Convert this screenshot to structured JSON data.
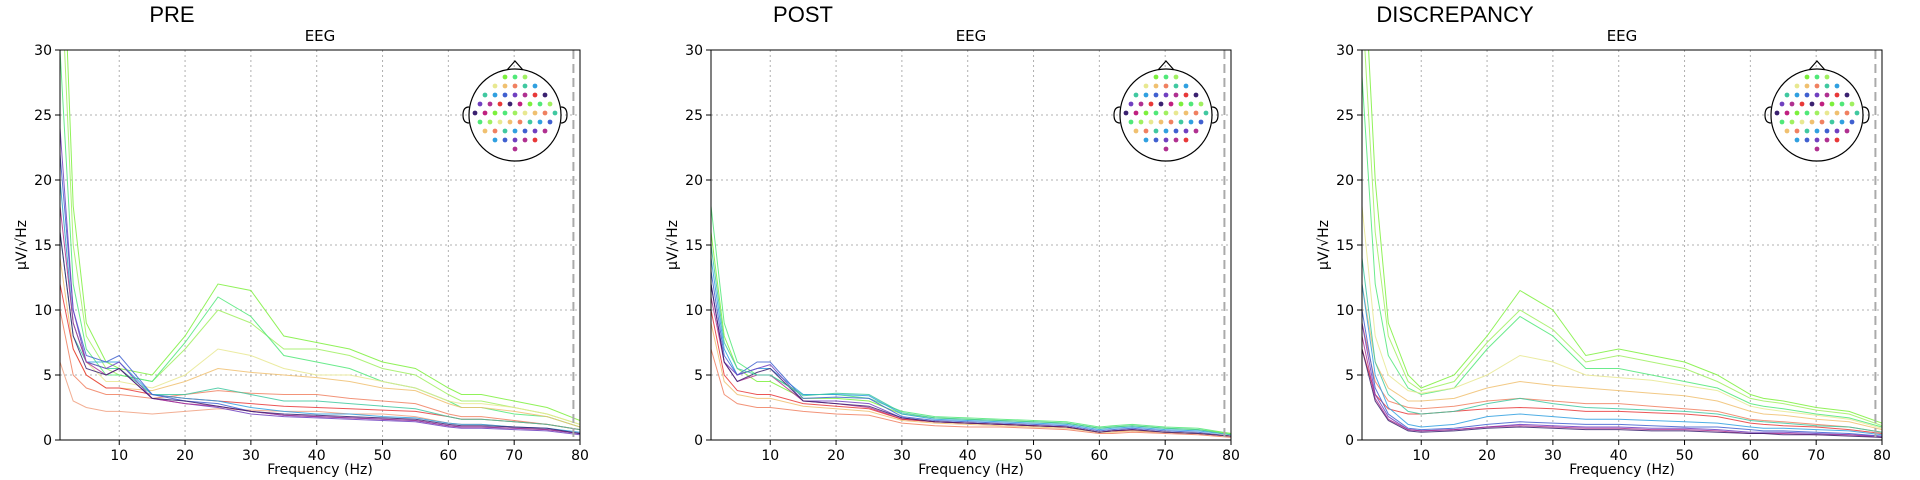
{
  "chart_data": [
    {
      "type": "line",
      "title": "PRE",
      "subtitle": "EEG",
      "xlabel": "Frequency (Hz)",
      "ylabel": "µV/√Hz",
      "xlim": [
        1,
        80
      ],
      "ylim": [
        0,
        30
      ],
      "xticks": [
        10,
        20,
        30,
        40,
        50,
        60,
        70,
        80
      ],
      "yticks": [
        0,
        5,
        10,
        15,
        20,
        25,
        30
      ],
      "grid": true,
      "vline_x": 79,
      "legend": "sensor-layout-inset-top-right",
      "x": [
        1,
        3,
        5,
        8,
        10,
        15,
        20,
        25,
        30,
        35,
        40,
        45,
        50,
        55,
        60,
        62,
        65,
        70,
        75,
        80
      ],
      "series": [
        {
          "color": "#7cf03c",
          "values": [
            45,
            18,
            9,
            6,
            5.5,
            5,
            8,
            12,
            11.5,
            8,
            7.5,
            7,
            6,
            5.5,
            4,
            3.5,
            3.5,
            3,
            2.5,
            1.5
          ]
        },
        {
          "color": "#a0f060",
          "values": [
            38,
            15,
            8,
            5.5,
            5,
            4.5,
            7,
            10,
            9,
            7,
            7,
            6.5,
            5.5,
            5,
            3.5,
            3,
            3,
            2.5,
            2,
            1.2
          ]
        },
        {
          "color": "#50e878",
          "values": [
            30,
            12,
            7,
            5,
            5,
            4.5,
            7.5,
            11,
            9.5,
            6.5,
            6,
            5.5,
            4.5,
            4,
            3,
            2.5,
            2.5,
            2,
            1.8,
            1
          ]
        },
        {
          "color": "#e8e890",
          "values": [
            20,
            9,
            6,
            4.5,
            4.5,
            4,
            5,
            7,
            6.5,
            5.5,
            5,
            5,
            4.5,
            4,
            3,
            2.8,
            2.8,
            2.5,
            2,
            1.2
          ]
        },
        {
          "color": "#f0c070",
          "values": [
            14,
            7,
            5,
            4,
            4,
            3.8,
            4.5,
            5.5,
            5.2,
            5,
            4.8,
            4.5,
            4,
            3.8,
            2.8,
            2.5,
            2.5,
            2.2,
            1.8,
            1
          ]
        },
        {
          "color": "#f08060",
          "values": [
            10,
            5,
            4,
            3.5,
            3.5,
            3.2,
            3.5,
            3.8,
            3.6,
            3.5,
            3.5,
            3.2,
            3,
            2.8,
            2,
            1.8,
            1.8,
            1.5,
            1.2,
            0.8
          ]
        },
        {
          "color": "#f0a080",
          "values": [
            6,
            3,
            2.5,
            2.2,
            2.2,
            2,
            2.2,
            2.4,
            2.3,
            2.2,
            2.2,
            2,
            2,
            1.8,
            1.3,
            1.2,
            1.2,
            1,
            0.8,
            0.5
          ]
        },
        {
          "color": "#e83838",
          "values": [
            12,
            7,
            5,
            4,
            4,
            3.5,
            3.2,
            3,
            2.8,
            2.6,
            2.5,
            2.4,
            2.3,
            2.2,
            1.8,
            1.6,
            1.6,
            1.4,
            1.2,
            0.8
          ]
        },
        {
          "color": "#40c8a0",
          "values": [
            16,
            8,
            6,
            5.5,
            5.5,
            3.5,
            3.5,
            4,
            3.5,
            3,
            3,
            2.8,
            2.6,
            2.4,
            1.8,
            1.6,
            1.6,
            1.4,
            1.2,
            0.8
          ]
        },
        {
          "color": "#30a0e0",
          "values": [
            20,
            9,
            6,
            6,
            6,
            3.5,
            3.2,
            3,
            2.5,
            2.2,
            2,
            2,
            1.8,
            1.7,
            1.3,
            1.2,
            1.2,
            1,
            0.9,
            0.6
          ]
        },
        {
          "color": "#4060d0",
          "values": [
            22,
            10,
            6.5,
            6,
            6.5,
            3.5,
            3,
            2.8,
            2.2,
            1.9,
            1.8,
            1.7,
            1.6,
            1.5,
            1.1,
            1,
            1,
            0.9,
            0.8,
            0.5
          ]
        },
        {
          "color": "#7040c0",
          "values": [
            24,
            10,
            6,
            5.5,
            6,
            3.2,
            2.8,
            2.5,
            2,
            1.8,
            1.7,
            1.6,
            1.5,
            1.4,
            1,
            0.9,
            0.9,
            0.8,
            0.7,
            0.4
          ]
        },
        {
          "color": "#b03090",
          "values": [
            18,
            9,
            6,
            5,
            5.5,
            3.2,
            2.8,
            2.6,
            2.2,
            1.9,
            1.8,
            1.7,
            1.6,
            1.5,
            1.1,
            1,
            1,
            0.9,
            0.8,
            0.5
          ]
        },
        {
          "color": "#3a2070",
          "values": [
            16,
            8,
            5.5,
            5,
            5.5,
            3.2,
            3,
            2.6,
            2.2,
            2,
            1.9,
            1.8,
            1.7,
            1.6,
            1.2,
            1.1,
            1.1,
            1,
            0.9,
            0.5
          ]
        }
      ]
    },
    {
      "type": "line",
      "title": "POST",
      "subtitle": "EEG",
      "xlabel": "Frequency (Hz)",
      "ylabel": "µV/√Hz",
      "xlim": [
        1,
        80
      ],
      "ylim": [
        0,
        30
      ],
      "xticks": [
        10,
        20,
        30,
        40,
        50,
        60,
        70,
        80
      ],
      "yticks": [
        0,
        5,
        10,
        15,
        20,
        25,
        30
      ],
      "grid": true,
      "vline_x": 79,
      "legend": "sensor-layout-inset-top-right",
      "x": [
        1,
        3,
        5,
        8,
        10,
        15,
        20,
        25,
        30,
        35,
        40,
        45,
        50,
        55,
        60,
        62,
        65,
        70,
        75,
        80
      ],
      "series": [
        {
          "color": "#50e878",
          "values": [
            18,
            9,
            6,
            5,
            5,
            3.5,
            3.5,
            3.2,
            2.2,
            1.8,
            1.7,
            1.6,
            1.5,
            1.4,
            1,
            1.1,
            1.2,
            1,
            0.9,
            0.5
          ]
        },
        {
          "color": "#7cf03c",
          "values": [
            16,
            8,
            5.5,
            4.5,
            4.5,
            3.2,
            3.2,
            3,
            2,
            1.7,
            1.6,
            1.5,
            1.4,
            1.3,
            0.9,
            1,
            1.1,
            0.9,
            0.8,
            0.5
          ]
        },
        {
          "color": "#30a0e0",
          "values": [
            14,
            7,
            5,
            5.5,
            5.5,
            3.5,
            3.5,
            3.4,
            2,
            1.6,
            1.5,
            1.4,
            1.3,
            1.2,
            0.8,
            0.9,
            1,
            0.8,
            0.7,
            0.4
          ]
        },
        {
          "color": "#4060d0",
          "values": [
            13,
            6.5,
            5,
            6,
            6,
            3.2,
            3.3,
            3.2,
            1.8,
            1.5,
            1.4,
            1.3,
            1.2,
            1.1,
            0.7,
            0.8,
            0.9,
            0.7,
            0.6,
            0.3
          ]
        },
        {
          "color": "#7040c0",
          "values": [
            12,
            6,
            5,
            5.5,
            5.8,
            3,
            3,
            2.8,
            1.7,
            1.4,
            1.3,
            1.2,
            1.1,
            1,
            0.6,
            0.7,
            0.8,
            0.6,
            0.5,
            0.3
          ]
        },
        {
          "color": "#b03090",
          "values": [
            11,
            6,
            4.5,
            5,
            5,
            3,
            2.8,
            2.5,
            1.6,
            1.4,
            1.3,
            1.2,
            1.1,
            1,
            0.6,
            0.7,
            0.8,
            0.6,
            0.5,
            0.3
          ]
        },
        {
          "color": "#e83838",
          "values": [
            10,
            5,
            3.8,
            3.5,
            3.5,
            2.8,
            2.6,
            2.4,
            1.6,
            1.4,
            1.3,
            1.2,
            1.1,
            1,
            0.6,
            0.7,
            0.7,
            0.6,
            0.5,
            0.3
          ]
        },
        {
          "color": "#f0c070",
          "values": [
            9,
            4.5,
            3.5,
            3.2,
            3.2,
            2.6,
            2.4,
            2.2,
            1.5,
            1.3,
            1.2,
            1.1,
            1,
            0.9,
            0.6,
            0.6,
            0.7,
            0.6,
            0.5,
            0.3
          ]
        },
        {
          "color": "#f08060",
          "values": [
            7,
            3.5,
            2.8,
            2.5,
            2.5,
            2.2,
            2,
            1.9,
            1.3,
            1.1,
            1,
            1,
            0.9,
            0.8,
            0.5,
            0.5,
            0.6,
            0.5,
            0.4,
            0.2
          ]
        },
        {
          "color": "#3a2070",
          "values": [
            12,
            6,
            4.5,
            5.2,
            5.5,
            3,
            2.8,
            2.6,
            1.7,
            1.4,
            1.3,
            1.2,
            1.1,
            1,
            0.6,
            0.7,
            0.8,
            0.6,
            0.5,
            0.3
          ]
        },
        {
          "color": "#40c8a0",
          "values": [
            15,
            7.5,
            5.5,
            5,
            5,
            3.4,
            3.6,
            3.5,
            2.1,
            1.7,
            1.6,
            1.5,
            1.4,
            1.3,
            0.9,
            1,
            1.1,
            0.9,
            0.8,
            0.4
          ]
        }
      ]
    },
    {
      "type": "line",
      "title": "DISCREPANCY",
      "subtitle": "EEG",
      "xlabel": "Frequency (Hz)",
      "ylabel": "µV/√Hz",
      "xlim": [
        1,
        80
      ],
      "ylim": [
        0,
        30
      ],
      "xticks": [
        10,
        20,
        30,
        40,
        50,
        60,
        70,
        80
      ],
      "yticks": [
        0,
        5,
        10,
        15,
        20,
        25,
        30
      ],
      "grid": true,
      "vline_x": 79,
      "legend": "sensor-layout-inset-top-right",
      "x": [
        1,
        3,
        5,
        8,
        10,
        15,
        20,
        25,
        30,
        35,
        40,
        45,
        50,
        55,
        60,
        62,
        65,
        70,
        75,
        80
      ],
      "series": [
        {
          "color": "#7cf03c",
          "values": [
            40,
            20,
            9,
            5,
            4,
            5,
            8,
            11.5,
            10,
            6.5,
            7,
            6.5,
            6,
            5,
            3.5,
            3.2,
            3,
            2.5,
            2.2,
            1.3
          ]
        },
        {
          "color": "#a0f060",
          "values": [
            34,
            16,
            8,
            4.5,
            3.8,
            4.5,
            7.5,
            10,
            8.5,
            6,
            6.5,
            6,
            5.5,
            4.5,
            3.2,
            3,
            2.8,
            2.3,
            2,
            1.1
          ]
        },
        {
          "color": "#50e878",
          "values": [
            28,
            12,
            6.5,
            4,
            3.5,
            4,
            7,
            9.5,
            8,
            5.5,
            5.5,
            5,
            4.5,
            4,
            2.8,
            2.6,
            2.4,
            2,
            1.7,
            1
          ]
        },
        {
          "color": "#e8e890",
          "values": [
            18,
            8,
            5,
            3.8,
            3.6,
            4,
            5,
            6.5,
            6,
            5,
            4.8,
            4.6,
            4.2,
            3.8,
            2.6,
            2.4,
            2.2,
            1.9,
            1.6,
            0.9
          ]
        },
        {
          "color": "#f0c070",
          "values": [
            12,
            6,
            4,
            3,
            3,
            3.2,
            4,
            4.5,
            4.2,
            4,
            3.8,
            3.6,
            3.4,
            3,
            2.2,
            2,
            1.9,
            1.6,
            1.4,
            0.8
          ]
        },
        {
          "color": "#f08060",
          "values": [
            9,
            4.5,
            3,
            2.5,
            2.4,
            2.6,
            3,
            3.2,
            3,
            2.8,
            2.8,
            2.6,
            2.4,
            2.2,
            1.6,
            1.5,
            1.4,
            1.2,
            1,
            0.6
          ]
        },
        {
          "color": "#e83838",
          "values": [
            7,
            3.5,
            2.4,
            2,
            2,
            2.2,
            2.4,
            2.5,
            2.4,
            2.2,
            2.2,
            2.1,
            2,
            1.8,
            1.3,
            1.2,
            1.1,
            1,
            0.8,
            0.5
          ]
        },
        {
          "color": "#40c8a0",
          "values": [
            14,
            6,
            3.5,
            2.2,
            2,
            2.2,
            2.8,
            3.2,
            2.8,
            2.5,
            2.4,
            2.3,
            2.2,
            2,
            1.5,
            1.4,
            1.3,
            1.1,
            1,
            0.6
          ]
        },
        {
          "color": "#30a0e0",
          "values": [
            12,
            5,
            2.5,
            1.2,
            1,
            1.2,
            1.8,
            2,
            1.8,
            1.6,
            1.6,
            1.5,
            1.4,
            1.3,
            1,
            0.9,
            0.9,
            0.8,
            0.7,
            0.4
          ]
        },
        {
          "color": "#4060d0",
          "values": [
            10,
            4,
            2,
            0.9,
            0.8,
            0.9,
            1.2,
            1.4,
            1.3,
            1.2,
            1.2,
            1.1,
            1,
            1,
            0.8,
            0.7,
            0.7,
            0.6,
            0.5,
            0.3
          ]
        },
        {
          "color": "#7040c0",
          "values": [
            9,
            3.5,
            1.8,
            0.8,
            0.7,
            0.8,
            1,
            1.2,
            1.1,
            1,
            1,
            0.9,
            0.9,
            0.8,
            0.6,
            0.6,
            0.6,
            0.5,
            0.4,
            0.3
          ]
        },
        {
          "color": "#b03090",
          "values": [
            8,
            3.2,
            1.6,
            0.8,
            0.7,
            0.8,
            1,
            1.1,
            1,
            0.9,
            0.9,
            0.8,
            0.8,
            0.7,
            0.5,
            0.5,
            0.5,
            0.4,
            0.4,
            0.2
          ]
        },
        {
          "color": "#3a2070",
          "values": [
            7,
            3,
            1.5,
            0.7,
            0.6,
            0.7,
            0.9,
            1,
            0.9,
            0.8,
            0.8,
            0.7,
            0.7,
            0.6,
            0.5,
            0.5,
            0.4,
            0.4,
            0.3,
            0.2
          ]
        }
      ]
    }
  ]
}
